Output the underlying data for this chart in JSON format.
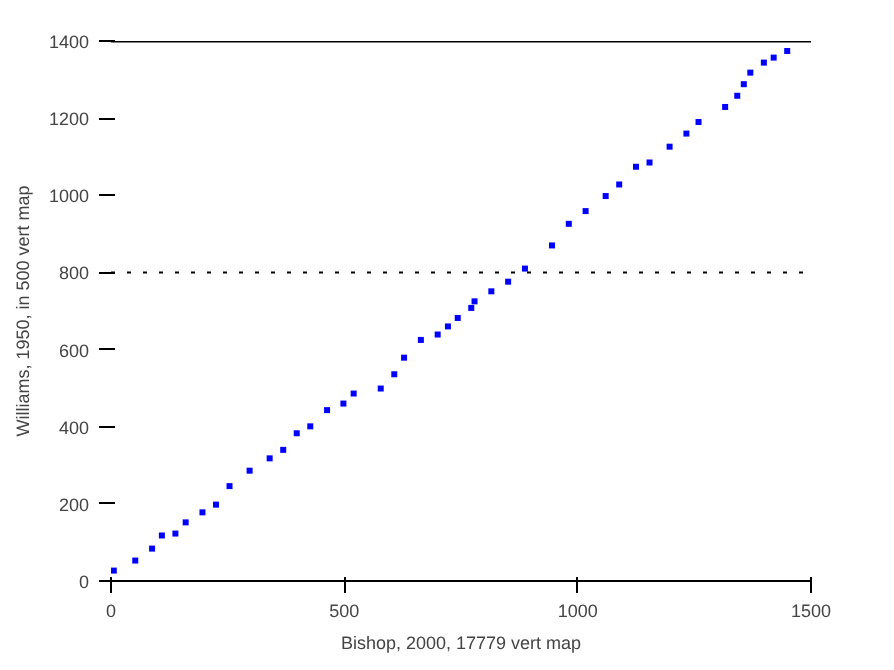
{
  "chart_data": {
    "type": "scatter",
    "xlabel": "Bishop, 2000, 17779 vert map",
    "ylabel": "Williams, 1950, in 500 vert map",
    "x": [
      6,
      52,
      88,
      109,
      138,
      160,
      196,
      225,
      254,
      297,
      340,
      369,
      398,
      427,
      463,
      498,
      520,
      578,
      607,
      628,
      664,
      700,
      722,
      743,
      772,
      779,
      815,
      851,
      887,
      945,
      981,
      1017,
      1060,
      1089,
      1125,
      1154,
      1197,
      1233,
      1259,
      1316,
      1342,
      1356,
      1370,
      1399,
      1420,
      1449
    ],
    "series": [
      {
        "color": "#0000ff",
        "values": [
          27,
          53,
          84,
          118,
          123,
          152,
          178,
          198,
          246,
          286,
          318,
          340,
          383,
          401,
          443,
          460,
          486,
          499,
          536,
          579,
          625,
          639,
          660,
          682,
          708,
          725,
          751,
          776,
          810,
          870,
          926,
          959,
          998,
          1028,
          1074,
          1085,
          1126,
          1160,
          1190,
          1229,
          1258,
          1288,
          1318,
          1344,
          1357,
          1374
        ]
      }
    ],
    "marker": "square",
    "xlim": [
      0,
      1500
    ],
    "ylim": [
      0,
      1400
    ],
    "xticks": [
      0,
      500,
      1000,
      1500
    ],
    "yticks": [
      0,
      200,
      400,
      600,
      800,
      1000,
      1200,
      1400
    ],
    "grid": false,
    "ref_lines": [
      {
        "axis": "y",
        "value": 1400,
        "color": "#000000",
        "line_style": "solid"
      },
      {
        "axis": "y",
        "value": 800,
        "color": "#000000",
        "line_style": "dotted"
      }
    ]
  }
}
